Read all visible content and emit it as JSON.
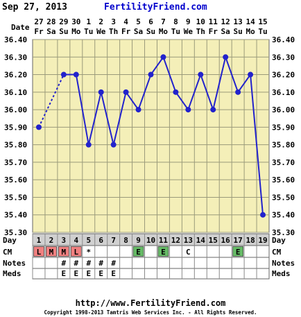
{
  "header": {
    "date": "Sep 27, 2013",
    "site": "FertilityFriend.com"
  },
  "chart_data": {
    "type": "line",
    "xlabel": "",
    "ylabel": "",
    "ylim": [
      35.3,
      36.4
    ],
    "yticks": [
      "36.40",
      "36.30",
      "36.20",
      "36.10",
      "36.00",
      "35.90",
      "35.80",
      "35.70",
      "35.60",
      "35.50",
      "35.40",
      "35.30"
    ],
    "date_row_label": "Date",
    "dates": [
      "27",
      "28",
      "29",
      "30",
      "1",
      "2",
      "3",
      "4",
      "5",
      "6",
      "7",
      "8",
      "9",
      "10",
      "11",
      "12",
      "13",
      "14",
      "15"
    ],
    "weekdays": [
      "Fr",
      "Sa",
      "Su",
      "Mo",
      "Tu",
      "We",
      "Th",
      "Fr",
      "Sa",
      "Su",
      "Mo",
      "Tu",
      "We",
      "Th",
      "Fr",
      "Sa",
      "Su",
      "Mo",
      "Tu"
    ],
    "day_row_label": "Day",
    "days": [
      "1",
      "2",
      "3",
      "4",
      "5",
      "6",
      "7",
      "8",
      "9",
      "10",
      "11",
      "12",
      "13",
      "14",
      "15",
      "16",
      "17",
      "18",
      "19"
    ],
    "series": [
      {
        "values": [
          35.9,
          null,
          36.2,
          36.2,
          35.8,
          36.1,
          35.8,
          36.1,
          36.0,
          36.2,
          36.3,
          36.1,
          36.0,
          36.2,
          36.0,
          36.3,
          36.1,
          36.2,
          35.4
        ]
      }
    ],
    "dotted_segments": [
      [
        0,
        2
      ]
    ],
    "rows": {
      "cm_label": "CM",
      "notes_label": "Notes",
      "meds_label": "Meds",
      "cm": [
        "L",
        "M",
        "M",
        "L",
        "*",
        "",
        "",
        "",
        "E",
        "",
        "E",
        "",
        "C",
        "",
        "",
        "",
        "E",
        "",
        ""
      ],
      "cm_colors": [
        "#f08080",
        "#f08080",
        "#f08080",
        "#f08080",
        "",
        "",
        "",
        "",
        "#66bb66",
        "",
        "#66bb66",
        "",
        "",
        "",
        "",
        "",
        "#66bb66",
        "",
        ""
      ],
      "notes": [
        "",
        "",
        "#",
        "#",
        "#",
        "#",
        "#",
        "",
        "",
        "",
        "",
        "",
        "",
        "",
        "",
        "",
        "",
        "",
        ""
      ],
      "meds": [
        "",
        "",
        "E",
        "E",
        "E",
        "E",
        "E",
        "",
        "",
        "",
        "",
        "",
        "",
        "",
        "",
        "",
        "",
        "",
        ""
      ]
    },
    "colors": {
      "plot_bg": "#f4efb8",
      "grid": "#9a9a7a",
      "line": "#2222cc",
      "day_bg": "#d0d0d0"
    }
  },
  "footer": {
    "url": "http://www.FertilityFriend.com",
    "copyright": "Copyright 1998-2013 Tamtris Web Services Inc. - All Rights Reserved."
  }
}
